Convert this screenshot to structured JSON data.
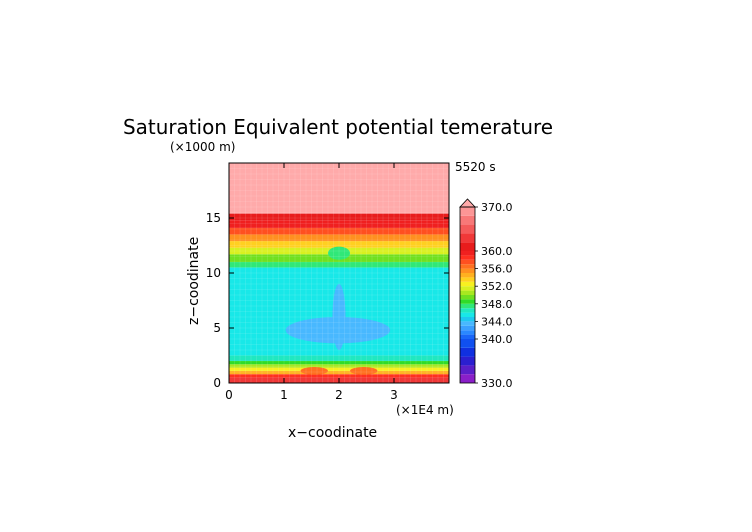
{
  "chart_data": {
    "type": "heatmap",
    "title": "Saturation Equivalent potential temerature",
    "time_label": "5520 s",
    "xlabel": "x−coodinate",
    "ylabel": "z−coodinate",
    "x_unit": "(×1E4 m)",
    "y_unit": "(×1000 m)",
    "xlim": [
      0,
      4
    ],
    "ylim": [
      0,
      20
    ],
    "x_ticks": [
      "0",
      "1",
      "2",
      "3"
    ],
    "y_ticks": [
      "0",
      "5",
      "10",
      "15"
    ],
    "grid": false,
    "layers": [
      {
        "z_range": [
          0.0,
          0.5
        ],
        "value": 362
      },
      {
        "z_range": [
          0.5,
          0.8
        ],
        "value": 358
      },
      {
        "z_range": [
          0.8,
          1.1
        ],
        "value": 354
      },
      {
        "z_range": [
          1.1,
          1.4
        ],
        "value": 352
      },
      {
        "z_range": [
          1.4,
          1.7
        ],
        "value": 350
      },
      {
        "z_range": [
          1.7,
          2.0
        ],
        "value": 348
      },
      {
        "z_range": [
          2.0,
          2.5
        ],
        "value": 346
      },
      {
        "z_range": [
          2.5,
          10.5
        ],
        "value": 345
      },
      {
        "z_range": [
          10.5,
          11.0
        ],
        "value": 347
      },
      {
        "z_range": [
          11.0,
          11.7
        ],
        "value": 349
      },
      {
        "z_range": [
          11.7,
          12.3
        ],
        "value": 351
      },
      {
        "z_range": [
          12.3,
          12.9
        ],
        "value": 353
      },
      {
        "z_range": [
          12.9,
          13.5
        ],
        "value": 355
      },
      {
        "z_range": [
          13.5,
          14.1
        ],
        "value": 357
      },
      {
        "z_range": [
          14.1,
          14.8
        ],
        "value": 359
      },
      {
        "z_range": [
          14.8,
          15.4
        ],
        "value": 361
      },
      {
        "z_range": [
          15.4,
          20.0
        ],
        "value": 372
      }
    ],
    "features": [
      {
        "name": "low-theta-wings",
        "x_center": 1.98,
        "z_center": 4.8,
        "x_halfwidth": 0.95,
        "z_halfwidth": 1.2,
        "value": 343
      },
      {
        "name": "low-theta-column",
        "x_center": 2.0,
        "z_center": 6.0,
        "x_halfwidth": 0.12,
        "z_halfwidth": 3.0,
        "value": 343
      },
      {
        "name": "warm-core-left",
        "x_center": 1.55,
        "z_center": 1.1,
        "x_halfwidth": 0.25,
        "z_halfwidth": 0.35,
        "value": 356
      },
      {
        "name": "warm-core-right",
        "x_center": 2.45,
        "z_center": 1.1,
        "x_halfwidth": 0.25,
        "z_halfwidth": 0.35,
        "value": 356
      },
      {
        "name": "upper-dip",
        "x_center": 2.0,
        "z_center": 11.8,
        "x_halfwidth": 0.2,
        "z_halfwidth": 0.6,
        "value": 347
      }
    ],
    "colorbar": {
      "min": 330,
      "max": 370,
      "extend": "max",
      "tick_labels": [
        "370.0",
        "360.0",
        "356.0",
        "352.0",
        "348.0",
        "344.0",
        "340.0",
        "330.0"
      ],
      "tick_values": [
        370,
        360,
        356,
        352,
        348,
        344,
        340,
        330
      ],
      "levels": [
        {
          "from": 330,
          "to": 332,
          "color": "#8a1fc9"
        },
        {
          "from": 332,
          "to": 334,
          "color": "#5a1fc9"
        },
        {
          "from": 334,
          "to": 336,
          "color": "#2b1fd0"
        },
        {
          "from": 336,
          "to": 338,
          "color": "#1030e0"
        },
        {
          "from": 338,
          "to": 340,
          "color": "#1050f0"
        },
        {
          "from": 340,
          "to": 341,
          "color": "#1a66f8"
        },
        {
          "from": 341,
          "to": 342,
          "color": "#2a88ff"
        },
        {
          "from": 342,
          "to": 343,
          "color": "#3aa0ff"
        },
        {
          "from": 343,
          "to": 344,
          "color": "#48b8ff"
        },
        {
          "from": 344,
          "to": 345,
          "color": "#1ec8f0"
        },
        {
          "from": 345,
          "to": 346,
          "color": "#18e8e8"
        },
        {
          "from": 346,
          "to": 347,
          "color": "#20e8c0"
        },
        {
          "from": 347,
          "to": 348,
          "color": "#30e878"
        },
        {
          "from": 348,
          "to": 349,
          "color": "#30dc28"
        },
        {
          "from": 349,
          "to": 350,
          "color": "#70e020"
        },
        {
          "from": 350,
          "to": 351,
          "color": "#a8e820"
        },
        {
          "from": 351,
          "to": 352,
          "color": "#d8f020"
        },
        {
          "from": 352,
          "to": 353,
          "color": "#f8f020"
        },
        {
          "from": 353,
          "to": 354,
          "color": "#ffd020"
        },
        {
          "from": 354,
          "to": 355,
          "color": "#ffb020"
        },
        {
          "from": 355,
          "to": 356,
          "color": "#ff9020"
        },
        {
          "from": 356,
          "to": 357,
          "color": "#ff7020"
        },
        {
          "from": 357,
          "to": 358,
          "color": "#ff5020"
        },
        {
          "from": 358,
          "to": 359,
          "color": "#ff3020"
        },
        {
          "from": 359,
          "to": 360,
          "color": "#f02020"
        },
        {
          "from": 360,
          "to": 362,
          "color": "#e81c1c"
        },
        {
          "from": 362,
          "to": 364,
          "color": "#f03838"
        },
        {
          "from": 364,
          "to": 366,
          "color": "#f45a5a"
        },
        {
          "from": 366,
          "to": 368,
          "color": "#f87878"
        },
        {
          "from": 368,
          "to": 370,
          "color": "#fc9696"
        },
        {
          "from": 370,
          "to": 374,
          "color": "#ffaaaa"
        }
      ]
    }
  }
}
